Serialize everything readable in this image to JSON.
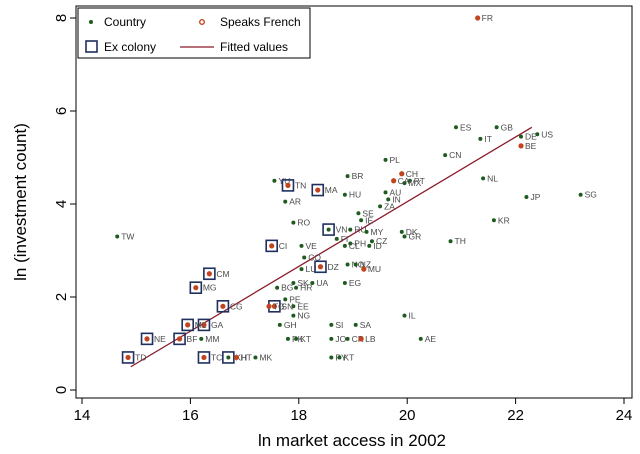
{
  "chart_data": {
    "type": "scatter",
    "xlabel": "ln market access in 2002",
    "ylabel": "ln (investment count)",
    "xlim": [
      14,
      24
    ],
    "ylim": [
      0,
      8
    ],
    "x_ticks": [
      14,
      16,
      18,
      20,
      22,
      24
    ],
    "y_ticks": [
      0,
      2,
      4,
      6,
      8
    ],
    "grid": false,
    "legend_position": "top-left",
    "legend": {
      "country": "Country",
      "speaks_french": "Speaks French",
      "ex_colony": "Ex colony",
      "fitted": "Fitted values"
    },
    "colors": {
      "country": "#1e5b1e",
      "speaks_french": "#c1441e",
      "ex_colony": "#1f2f5e",
      "fitted": "#8b1a2b"
    },
    "fitted_line": {
      "x": [
        14.9,
        22.3
      ],
      "y": [
        0.5,
        5.65
      ]
    },
    "points": [
      {
        "label": "FR",
        "x": 21.3,
        "y": 8.0,
        "french": true,
        "colony": false
      },
      {
        "label": "ES",
        "x": 20.9,
        "y": 5.65,
        "french": false,
        "colony": false
      },
      {
        "label": "GB",
        "x": 21.65,
        "y": 5.65,
        "french": false,
        "colony": false
      },
      {
        "label": "US",
        "x": 22.4,
        "y": 5.5,
        "french": false,
        "colony": false
      },
      {
        "label": "DE",
        "x": 22.1,
        "y": 5.45,
        "french": false,
        "colony": false
      },
      {
        "label": "IT",
        "x": 21.35,
        "y": 5.4,
        "french": false,
        "colony": false
      },
      {
        "label": "BE",
        "x": 22.1,
        "y": 5.25,
        "french": true,
        "colony": false
      },
      {
        "label": "CN",
        "x": 20.7,
        "y": 5.05,
        "french": false,
        "colony": false
      },
      {
        "label": "PL",
        "x": 19.6,
        "y": 4.95,
        "french": false,
        "colony": false
      },
      {
        "label": "CH",
        "x": 19.9,
        "y": 4.65,
        "french": true,
        "colony": false
      },
      {
        "label": "BR",
        "x": 18.9,
        "y": 4.6,
        "french": false,
        "colony": false
      },
      {
        "label": "NL",
        "x": 21.4,
        "y": 4.55,
        "french": false,
        "colony": false
      },
      {
        "label": "PT",
        "x": 20.05,
        "y": 4.5,
        "french": false,
        "colony": false
      },
      {
        "label": "CA",
        "x": 19.75,
        "y": 4.5,
        "french": true,
        "colony": false
      },
      {
        "label": "MX",
        "x": 19.95,
        "y": 4.45,
        "french": false,
        "colony": false
      },
      {
        "label": "YU",
        "x": 17.55,
        "y": 4.5,
        "french": false,
        "colony": false
      },
      {
        "label": "TN",
        "x": 17.8,
        "y": 4.4,
        "french": true,
        "colony": true
      },
      {
        "label": "MA",
        "x": 18.35,
        "y": 4.3,
        "french": true,
        "colony": true
      },
      {
        "label": "AU",
        "x": 19.6,
        "y": 4.25,
        "french": false,
        "colony": false
      },
      {
        "label": "HU",
        "x": 18.85,
        "y": 4.2,
        "french": false,
        "colony": false
      },
      {
        "label": "SG",
        "x": 23.2,
        "y": 4.2,
        "french": false,
        "colony": false
      },
      {
        "label": "JP",
        "x": 22.2,
        "y": 4.15,
        "french": false,
        "colony": false
      },
      {
        "label": "IN",
        "x": 19.65,
        "y": 4.1,
        "french": false,
        "colony": false
      },
      {
        "label": "AR",
        "x": 17.75,
        "y": 4.05,
        "french": false,
        "colony": false
      },
      {
        "label": "ZA",
        "x": 19.5,
        "y": 3.95,
        "french": false,
        "colony": false
      },
      {
        "label": "SE",
        "x": 19.1,
        "y": 3.8,
        "french": false,
        "colony": false
      },
      {
        "label": "IE",
        "x": 19.15,
        "y": 3.65,
        "french": false,
        "colony": false
      },
      {
        "label": "KR",
        "x": 21.6,
        "y": 3.65,
        "french": false,
        "colony": false
      },
      {
        "label": "RO",
        "x": 17.9,
        "y": 3.6,
        "french": false,
        "colony": false
      },
      {
        "label": "VN",
        "x": 18.55,
        "y": 3.45,
        "french": false,
        "colony": true
      },
      {
        "label": "RU",
        "x": 18.95,
        "y": 3.45,
        "french": false,
        "colony": false
      },
      {
        "label": "MY",
        "x": 19.25,
        "y": 3.4,
        "french": false,
        "colony": false
      },
      {
        "label": "DK",
        "x": 19.9,
        "y": 3.4,
        "french": false,
        "colony": false
      },
      {
        "label": "GR",
        "x": 19.95,
        "y": 3.3,
        "french": false,
        "colony": false
      },
      {
        "label": "FI",
        "x": 18.7,
        "y": 3.25,
        "french": false,
        "colony": false
      },
      {
        "label": "CZ",
        "x": 19.35,
        "y": 3.2,
        "french": false,
        "colony": false
      },
      {
        "label": "TH",
        "x": 20.8,
        "y": 3.2,
        "french": false,
        "colony": false
      },
      {
        "label": "PH",
        "x": 18.95,
        "y": 3.15,
        "french": false,
        "colony": false
      },
      {
        "label": "CL",
        "x": 18.85,
        "y": 3.1,
        "french": false,
        "colony": false
      },
      {
        "label": "ID",
        "x": 19.3,
        "y": 3.1,
        "french": false,
        "colony": false
      },
      {
        "label": "CI",
        "x": 17.5,
        "y": 3.1,
        "french": true,
        "colony": true
      },
      {
        "label": "VE",
        "x": 18.05,
        "y": 3.1,
        "french": false,
        "colony": false
      },
      {
        "label": "TW",
        "x": 14.65,
        "y": 3.3,
        "french": false,
        "colony": false
      },
      {
        "label": "CO",
        "x": 18.1,
        "y": 2.85,
        "french": false,
        "colony": false
      },
      {
        "label": "NO",
        "x": 18.9,
        "y": 2.7,
        "french": false,
        "colony": false
      },
      {
        "label": "NZ",
        "x": 19.05,
        "y": 2.7,
        "french": false,
        "colony": false
      },
      {
        "label": "LU",
        "x": 18.05,
        "y": 2.6,
        "french": false,
        "colony": false
      },
      {
        "label": "DZ",
        "x": 18.4,
        "y": 2.65,
        "french": true,
        "colony": true
      },
      {
        "label": "MU",
        "x": 19.2,
        "y": 2.6,
        "french": true,
        "colony": false
      },
      {
        "label": "CM",
        "x": 16.35,
        "y": 2.5,
        "french": true,
        "colony": true
      },
      {
        "label": "EG",
        "x": 18.85,
        "y": 2.3,
        "french": false,
        "colony": false
      },
      {
        "label": "SK",
        "x": 17.9,
        "y": 2.3,
        "french": false,
        "colony": false
      },
      {
        "label": "UA",
        "x": 18.25,
        "y": 2.3,
        "french": false,
        "colony": false
      },
      {
        "label": "MG",
        "x": 16.1,
        "y": 2.2,
        "french": true,
        "colony": true
      },
      {
        "label": "BG",
        "x": 17.6,
        "y": 2.2,
        "french": false,
        "colony": false
      },
      {
        "label": "HR",
        "x": 17.95,
        "y": 2.2,
        "french": false,
        "colony": false
      },
      {
        "label": "PE",
        "x": 17.75,
        "y": 1.95,
        "french": false,
        "colony": false
      },
      {
        "label": "CG",
        "x": 16.6,
        "y": 1.8,
        "french": true,
        "colony": true
      },
      {
        "label": "EE",
        "x": 17.9,
        "y": 1.8,
        "french": false,
        "colony": false
      },
      {
        "label": "SN",
        "x": 17.55,
        "y": 1.8,
        "french": true,
        "colony": true
      },
      {
        "label": "TG",
        "x": 17.45,
        "y": 1.8,
        "french": true,
        "colony": false
      },
      {
        "label": "NG",
        "x": 17.9,
        "y": 1.6,
        "french": false,
        "colony": false
      },
      {
        "label": "IL",
        "x": 19.95,
        "y": 1.6,
        "french": false,
        "colony": false
      },
      {
        "label": "GA",
        "x": 16.25,
        "y": 1.4,
        "french": true,
        "colony": true
      },
      {
        "label": "ML",
        "x": 15.95,
        "y": 1.4,
        "french": true,
        "colony": true
      },
      {
        "label": "GH",
        "x": 17.65,
        "y": 1.4,
        "french": false,
        "colony": false
      },
      {
        "label": "SI",
        "x": 18.6,
        "y": 1.4,
        "french": false,
        "colony": false
      },
      {
        "label": "SA",
        "x": 19.05,
        "y": 1.4,
        "french": false,
        "colony": false
      },
      {
        "label": "NE",
        "x": 15.2,
        "y": 1.1,
        "french": true,
        "colony": true
      },
      {
        "label": "BF",
        "x": 15.8,
        "y": 1.1,
        "french": true,
        "colony": true
      },
      {
        "label": "MM",
        "x": 16.2,
        "y": 1.1,
        "french": false,
        "colony": false
      },
      {
        "label": "PK",
        "x": 17.8,
        "y": 1.1,
        "french": false,
        "colony": false
      },
      {
        "label": "KT",
        "x": 17.95,
        "y": 1.1,
        "french": false,
        "colony": false
      },
      {
        "label": "JO",
        "x": 18.6,
        "y": 1.1,
        "french": false,
        "colony": false
      },
      {
        "label": "CR",
        "x": 18.9,
        "y": 1.1,
        "french": false,
        "colony": false
      },
      {
        "label": "LB",
        "x": 19.15,
        "y": 1.1,
        "french": true,
        "colony": false
      },
      {
        "label": "AE",
        "x": 20.25,
        "y": 1.1,
        "french": false,
        "colony": false
      },
      {
        "label": "TD",
        "x": 14.85,
        "y": 0.7,
        "french": true,
        "colony": true
      },
      {
        "label": "TC",
        "x": 16.25,
        "y": 0.7,
        "french": true,
        "colony": true
      },
      {
        "label": "KH",
        "x": 16.7,
        "y": 0.7,
        "french": false,
        "colony": true
      },
      {
        "label": "HT",
        "x": 16.85,
        "y": 0.7,
        "french": true,
        "colony": false
      },
      {
        "label": "MK",
        "x": 17.2,
        "y": 0.7,
        "french": false,
        "colony": false
      },
      {
        "label": "PY",
        "x": 18.6,
        "y": 0.7,
        "french": false,
        "colony": false
      },
      {
        "label": "KT",
        "x": 18.75,
        "y": 0.7,
        "french": false,
        "colony": false
      }
    ]
  }
}
